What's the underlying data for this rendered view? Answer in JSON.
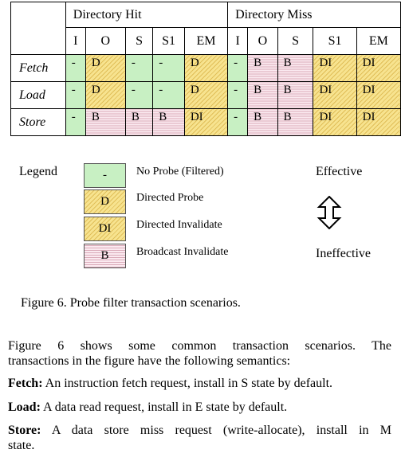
{
  "table": {
    "groups": [
      "Directory Hit",
      "Directory Miss"
    ],
    "states": [
      "I",
      "O",
      "S",
      "S1",
      "EM"
    ],
    "rows": [
      {
        "label": "Fetch",
        "hit": [
          {
            "v": "-",
            "t": "green"
          },
          {
            "v": "D",
            "t": "yellow"
          },
          {
            "v": "-",
            "t": "green"
          },
          {
            "v": "-",
            "t": "green"
          },
          {
            "v": "D",
            "t": "yellow"
          }
        ],
        "miss": [
          {
            "v": "-",
            "t": "green"
          },
          {
            "v": "B",
            "t": "pink"
          },
          {
            "v": "B",
            "t": "pink"
          },
          {
            "v": "DI",
            "t": "yellow"
          },
          {
            "v": "DI",
            "t": "yellow"
          }
        ]
      },
      {
        "label": "Load",
        "hit": [
          {
            "v": "-",
            "t": "green"
          },
          {
            "v": "D",
            "t": "yellow"
          },
          {
            "v": "-",
            "t": "green"
          },
          {
            "v": "-",
            "t": "green"
          },
          {
            "v": "D",
            "t": "yellow"
          }
        ],
        "miss": [
          {
            "v": "-",
            "t": "green"
          },
          {
            "v": "B",
            "t": "pink"
          },
          {
            "v": "B",
            "t": "pink"
          },
          {
            "v": "DI",
            "t": "yellow"
          },
          {
            "v": "DI",
            "t": "yellow"
          }
        ]
      },
      {
        "label": "Store",
        "hit": [
          {
            "v": "-",
            "t": "green"
          },
          {
            "v": "B",
            "t": "pink"
          },
          {
            "v": "B",
            "t": "pink"
          },
          {
            "v": "B",
            "t": "pink"
          },
          {
            "v": "DI",
            "t": "yellow"
          }
        ],
        "miss": [
          {
            "v": "-",
            "t": "green"
          },
          {
            "v": "B",
            "t": "pink"
          },
          {
            "v": "B",
            "t": "pink"
          },
          {
            "v": "DI",
            "t": "yellow"
          },
          {
            "v": "DI",
            "t": "yellow"
          }
        ]
      }
    ]
  },
  "legend": {
    "title": "Legend",
    "items": [
      {
        "symbol": "-",
        "label": "No Probe (Filtered)",
        "t": "green"
      },
      {
        "symbol": "D",
        "label": "Directed Probe",
        "t": "yellow"
      },
      {
        "symbol": "DI",
        "label": "Directed Invalidate",
        "t": "yellow"
      },
      {
        "symbol": "B",
        "label": "Broadcast Invalidate",
        "t": "pink"
      }
    ],
    "effective": "Effective",
    "ineffective": "Ineffective"
  },
  "caption": "Figure 6. Probe filter transaction scenarios.",
  "paragraphs": {
    "intro_line1": "Figure 6 shows some common transaction scenarios. The",
    "intro_line2": "transactions in the figure have the following semantics:",
    "fetch_term": "Fetch:",
    "fetch_text": " An instruction fetch request, install in S state by default.",
    "load_term": "Load:",
    "load_text": " A data read request, install in E state by default.",
    "store_term": "Store:",
    "store_line1": " A data store miss request (write-allocate), install in M",
    "store_line2": "state."
  },
  "colors": {
    "green": "#c8f0c3",
    "yellow": "#f7e38f",
    "pink": "#fbeaf0"
  }
}
